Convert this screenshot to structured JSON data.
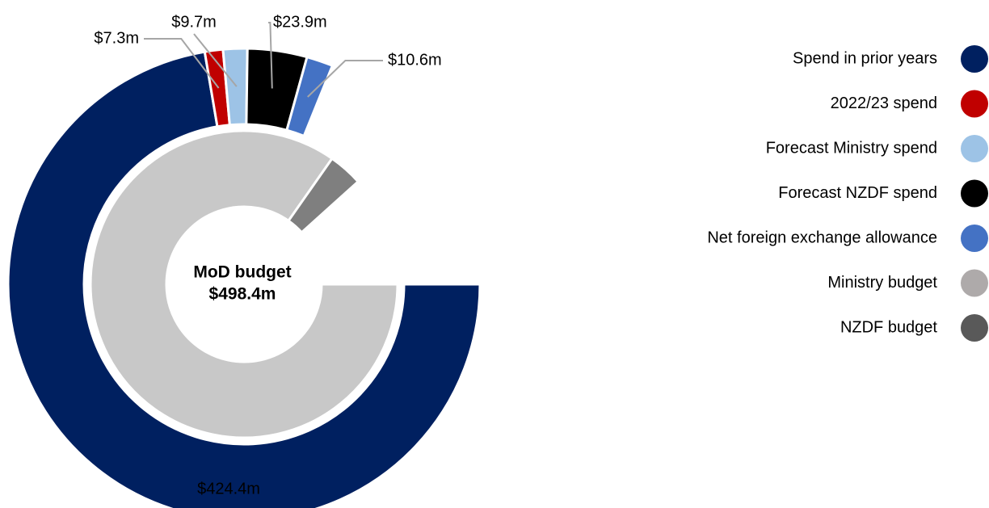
{
  "chart_data": {
    "type": "donut",
    "center_label": [
      "MoD budget",
      "$498.4m"
    ],
    "rings": [
      {
        "categories": [
          "Spend in prior years",
          "2022/23 spend",
          "Forecast Ministry spend",
          "Forecast NZDF spend",
          "Net foreign exchange allowance"
        ],
        "values": [
          424.4,
          7.3,
          9.7,
          23.9,
          10.6
        ],
        "value_labels": [
          "$424.4m",
          "$7.3m",
          "$9.7m",
          "$23.9m",
          "$10.6m"
        ],
        "colors": [
          "#002060",
          "#c00000",
          "#9dc3e6",
          "#000000",
          "#4472c4"
        ]
      },
      {
        "categories": [
          "Ministry budget",
          "NZDF budget"
        ],
        "values": [
          478.0,
          20.4
        ],
        "colors": [
          "#c8c8c8",
          "#7f7f7f"
        ]
      }
    ],
    "legend_colors": [
      "#002060",
      "#c00000",
      "#9dc3e6",
      "#000000",
      "#4472c4",
      "#aeaaaa",
      "#595959"
    ]
  }
}
